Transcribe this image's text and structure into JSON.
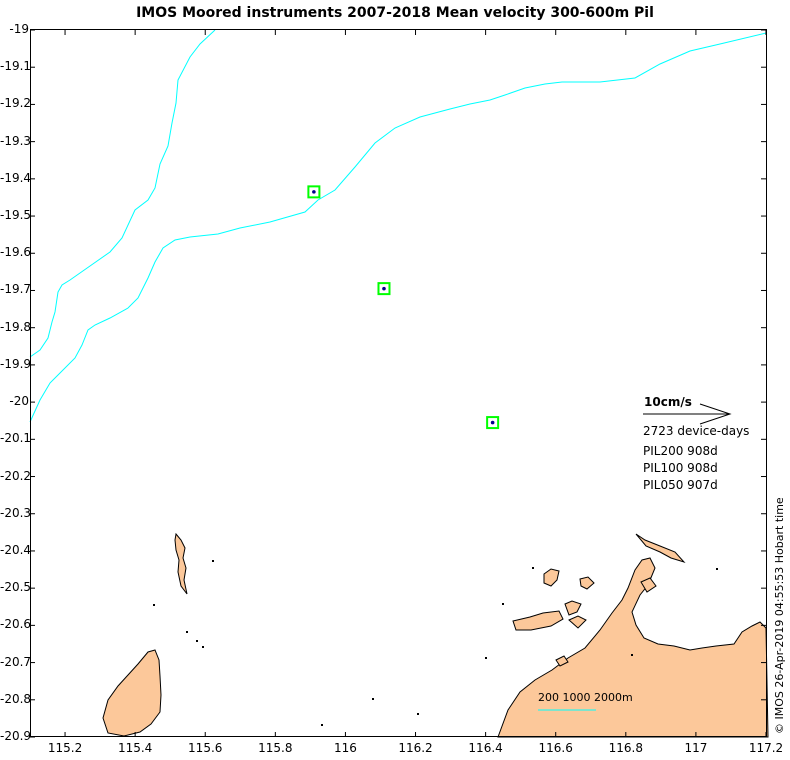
{
  "title": "IMOS Moored instruments 2007-2018 Mean velocity 300-600m Pil",
  "axes": {
    "y_ticks": [
      "-19",
      "-19.1",
      "-19.2",
      "-19.3",
      "-19.4",
      "-19.5",
      "-19.6",
      "-19.7",
      "-19.8",
      "-19.9",
      "-20",
      "-20.1",
      "-20.2",
      "-20.3",
      "-20.4",
      "-20.5",
      "-20.6",
      "-20.7",
      "-20.8",
      "-20.9"
    ],
    "x_ticks": [
      "115.2",
      "115.4",
      "115.6",
      "115.8",
      "116",
      "116.2",
      "116.4",
      "116.6",
      "116.8",
      "117",
      "117.2"
    ]
  },
  "scale": {
    "speed_label": "10cm/s",
    "device_days": "2723 device-days"
  },
  "moorings": [
    {
      "label": "PIL200 908d",
      "lon": 115.91,
      "lat": -19.435
    },
    {
      "label": "PIL100 908d",
      "lon": 116.11,
      "lat": -19.695
    },
    {
      "label": "PIL050 907d",
      "lon": 116.42,
      "lat": -20.055
    }
  ],
  "depth_label": "200 1000 2000m",
  "timestamp": "© IMOS 26-Apr-2019 04:55:53 Hobart time",
  "colors": {
    "land": "#fcc89a",
    "isobath": "#00ffff",
    "marker_box": "#00ff00",
    "marker_dot": "#00008b"
  }
}
